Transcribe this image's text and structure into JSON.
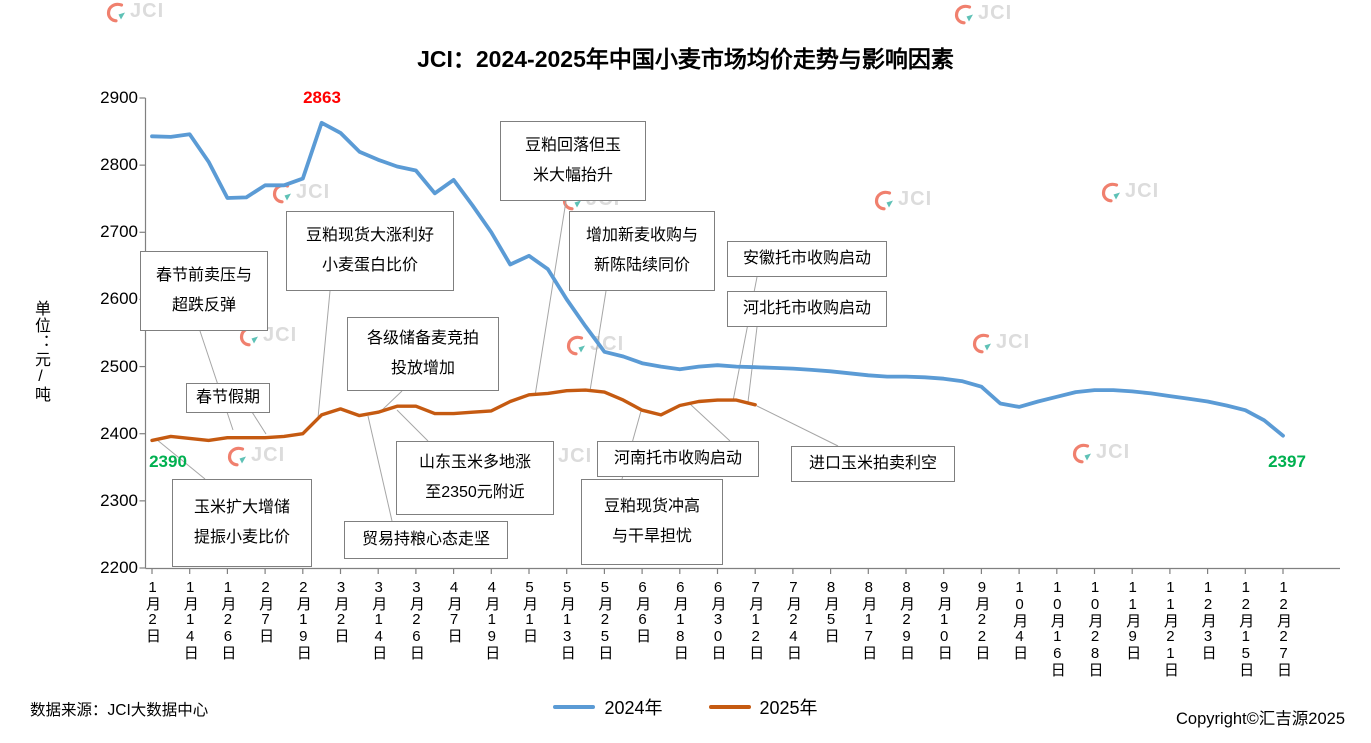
{
  "title": "JCI：2024-2025年中国小麦市场均价走势与影响因素",
  "y_axis_title": "单位：元/吨",
  "watermark_text": "JCI",
  "footer": {
    "source": "数据来源：JCI大数据中心",
    "copyright": "Copyright©汇吉源2025"
  },
  "legend": [
    {
      "label": "2024年",
      "color": "#5B9BD5"
    },
    {
      "label": "2025年",
      "color": "#C55A11"
    }
  ],
  "point_labels": [
    {
      "id": "peak-2024",
      "text": "2863",
      "color": "#FF0000"
    },
    {
      "id": "start-2025",
      "text": "2390",
      "color": "#00B050"
    },
    {
      "id": "end-2024",
      "text": "2397",
      "color": "#00B050"
    }
  ],
  "chart_data": {
    "type": "line",
    "title": "JCI：2024-2025年中国小麦市场均价走势与影响因素",
    "xlabel": "",
    "ylabel": "单位：元/吨",
    "ylim": [
      2200,
      2900
    ],
    "y_ticks": [
      2200,
      2300,
      2400,
      2500,
      2600,
      2700,
      2800,
      2900
    ],
    "grid": false,
    "legend_position": "bottom",
    "x_tick_labels": [
      "1月2日",
      "1月14日",
      "1月26日",
      "2月7日",
      "2月19日",
      "3月2日",
      "3月14日",
      "3月26日",
      "4月7日",
      "4月19日",
      "5月1日",
      "5月13日",
      "5月25日",
      "6月6日",
      "6月18日",
      "6月30日",
      "7月12日",
      "7月24日",
      "8月5日",
      "8月17日",
      "8月29日",
      "9月10日",
      "9月22日",
      "10月4日",
      "10月16日",
      "10月28日",
      "11月9日",
      "11月21日",
      "12月3日",
      "12月15日",
      "12月27日"
    ],
    "series": [
      {
        "name": "2024年",
        "color": "#5B9BD5",
        "width": 3.8,
        "x_step_ticks": 0.5,
        "values": [
          2843,
          2842,
          2846,
          2805,
          2751,
          2752,
          2770,
          2770,
          2780,
          2863,
          2848,
          2820,
          2808,
          2798,
          2792,
          2758,
          2778,
          2740,
          2700,
          2652,
          2665,
          2645,
          2600,
          2560,
          2522,
          2515,
          2505,
          2500,
          2496,
          2500,
          2502,
          2500,
          2499,
          2498,
          2497,
          2495,
          2493,
          2490,
          2487,
          2485,
          2485,
          2484,
          2482,
          2478,
          2470,
          2445,
          2440,
          2448,
          2455,
          2462,
          2465,
          2465,
          2463,
          2460,
          2456,
          2452,
          2448,
          2442,
          2435,
          2420,
          2397
        ]
      },
      {
        "name": "2025年",
        "color": "#C55A11",
        "width": 3.4,
        "x_step_ticks": 0.5,
        "values": [
          2390,
          2396,
          2393,
          2390,
          2394,
          2394,
          2394,
          2396,
          2400,
          2428,
          2437,
          2427,
          2432,
          2441,
          2441,
          2430,
          2430,
          2432,
          2434,
          2448,
          2458,
          2460,
          2464,
          2465,
          2462,
          2450,
          2435,
          2428,
          2442,
          2448,
          2450,
          2450,
          2443
        ]
      }
    ],
    "annotations": [
      {
        "id": "pre-festival",
        "lines": [
          "春节前卖压与",
          "超跌反弹"
        ]
      },
      {
        "id": "festival",
        "lines": [
          "春节假期"
        ]
      },
      {
        "id": "corn-reserve",
        "lines": [
          "玉米扩大增储",
          "提振小麦比价"
        ]
      },
      {
        "id": "soymeal-spot-rise",
        "lines": [
          "豆粕现货大涨利好",
          "小麦蛋白比价"
        ]
      },
      {
        "id": "reserve-auction",
        "lines": [
          "各级储备麦竞拍",
          "投放增加"
        ]
      },
      {
        "id": "trade-hold",
        "lines": [
          "贸易持粮心态走坚"
        ]
      },
      {
        "id": "shandong-corn",
        "lines": [
          "山东玉米多地涨",
          "至2350元附近"
        ]
      },
      {
        "id": "soymeal-fall-corn-rise",
        "lines": [
          "豆粕回落但玉",
          "米大幅抬升"
        ]
      },
      {
        "id": "new-wheat",
        "lines": [
          "增加新麦收购与",
          "新陈陆续同价"
        ]
      },
      {
        "id": "soymeal-high-drought",
        "lines": [
          "豆粕现货冲高",
          "与干旱担忧"
        ]
      },
      {
        "id": "henan",
        "lines": [
          "河南托市收购启动"
        ]
      },
      {
        "id": "anhui",
        "lines": [
          "安徽托市收购启动"
        ]
      },
      {
        "id": "hebei",
        "lines": [
          "河北托市收购启动"
        ]
      },
      {
        "id": "imported-corn",
        "lines": [
          "进口玉米拍卖利空"
        ]
      }
    ]
  }
}
